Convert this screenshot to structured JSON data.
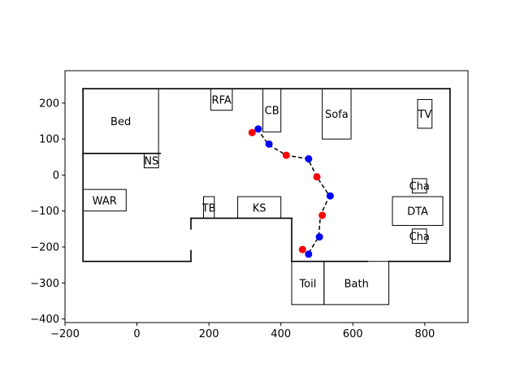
{
  "chart_data": {
    "type": "scatter",
    "xlim": [
      -200,
      920
    ],
    "ylim": [
      -410,
      290
    ],
    "xticks": [
      -200,
      0,
      200,
      400,
      600,
      800
    ],
    "yticks": [
      -400,
      -300,
      -200,
      -100,
      0,
      100,
      200
    ],
    "xtick_labels": [
      "−200",
      "0",
      "200",
      "400",
      "600",
      "800"
    ],
    "ytick_labels": [
      "−400",
      "−300",
      "−200",
      "−100",
      "0",
      "100",
      "200"
    ],
    "grid": false,
    "walls": [
      [
        [
          -150,
          240
        ],
        [
          870,
          240
        ]
      ],
      [
        [
          870,
          240
        ],
        [
          870,
          -240
        ]
      ],
      [
        [
          870,
          -240
        ],
        [
          700,
          -240
        ]
      ],
      [
        [
          640,
          -240
        ],
        [
          430,
          -240
        ]
      ],
      [
        [
          430,
          -240
        ],
        [
          430,
          -120
        ]
      ],
      [
        [
          430,
          -120
        ],
        [
          150,
          -120
        ]
      ],
      [
        [
          150,
          -120
        ],
        [
          150,
          -150
        ]
      ],
      [
        [
          150,
          -210
        ],
        [
          150,
          -240
        ]
      ],
      [
        [
          150,
          -240
        ],
        [
          -150,
          -240
        ]
      ],
      [
        [
          -150,
          -240
        ],
        [
          -150,
          240
        ]
      ],
      [
        [
          -150,
          60
        ],
        [
          65,
          60
        ]
      ]
    ],
    "rooms": [
      {
        "label": "Bed",
        "x": [
          -150,
          60
        ],
        "y": [
          60,
          240
        ]
      },
      {
        "label": "RFA",
        "x": [
          205,
          265
        ],
        "y": [
          180,
          240
        ]
      },
      {
        "label": "CB",
        "x": [
          350,
          400
        ],
        "y": [
          120,
          240
        ]
      },
      {
        "label": "Sofa",
        "x": [
          515,
          595
        ],
        "y": [
          100,
          240
        ]
      },
      {
        "label": "TV",
        "x": [
          780,
          820
        ],
        "y": [
          130,
          210
        ]
      },
      {
        "label": "NS",
        "x": [
          20,
          60
        ],
        "y": [
          20,
          60
        ]
      },
      {
        "label": "WAR",
        "x": [
          -150,
          -30
        ],
        "y": [
          -100,
          -40
        ]
      },
      {
        "label": "TB",
        "x": [
          185,
          215
        ],
        "y": [
          -120,
          -60
        ]
      },
      {
        "label": "KS",
        "x": [
          280,
          400
        ],
        "y": [
          -120,
          -60
        ]
      },
      {
        "label": "Cha",
        "x": [
          765,
          805
        ],
        "y": [
          -50,
          -10
        ]
      },
      {
        "label": "DTA",
        "x": [
          710,
          850
        ],
        "y": [
          -140,
          -60
        ]
      },
      {
        "label": "Cha",
        "x": [
          765,
          805
        ],
        "y": [
          -190,
          -150
        ]
      },
      {
        "label": "Toil",
        "x": [
          430,
          520
        ],
        "y": [
          -360,
          -240
        ]
      },
      {
        "label": "Bath",
        "x": [
          520,
          700
        ],
        "y": [
          -360,
          -240
        ]
      }
    ],
    "path": {
      "x": [
        335,
        365,
        415,
        475,
        500,
        535,
        510,
        505,
        475
      ],
      "y": [
        128,
        85,
        55,
        45,
        -5,
        -58,
        -112,
        -172,
        -220
      ]
    },
    "series": [
      {
        "color": "#ff0000",
        "x": [
          320,
          415,
          500,
          515,
          460
        ],
        "y": [
          118,
          55,
          -5,
          -112,
          -207
        ]
      },
      {
        "color": "#0000ff",
        "x": [
          337,
          367,
          477,
          537,
          507,
          477
        ],
        "y": [
          128,
          86,
          45,
          -58,
          -172,
          -220
        ]
      }
    ]
  }
}
